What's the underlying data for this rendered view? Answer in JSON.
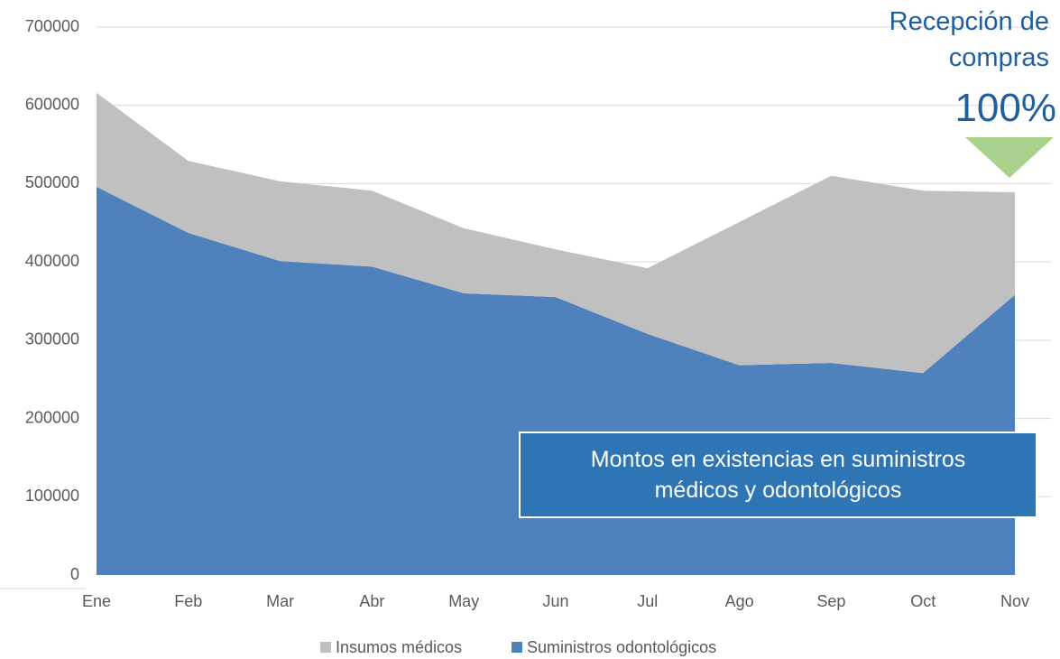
{
  "chart_data": {
    "type": "stacked_area",
    "categories": [
      "Ene",
      "Feb",
      "Mar",
      "Abr",
      "May",
      "Jun",
      "Jul",
      "Ago",
      "Sep",
      "Oct",
      "Nov"
    ],
    "series": [
      {
        "name": "Suministros odontológicos",
        "color": "#4f81bd",
        "values": [
          496000,
          437000,
          401000,
          394000,
          360000,
          355000,
          308000,
          268000,
          271000,
          258000,
          358000
        ]
      },
      {
        "name": "Insumos médicos",
        "color": "#c0c0c0",
        "values": [
          120000,
          92000,
          102000,
          97000,
          83000,
          61000,
          84000,
          183000,
          239000,
          233000,
          131000
        ]
      }
    ],
    "ylim": [
      0,
      700000
    ],
    "yticks": [
      0,
      100000,
      200000,
      300000,
      400000,
      500000,
      600000,
      700000
    ],
    "grid": true,
    "legend": "bottom",
    "annotations": {
      "heading": "Recepción de compras",
      "percent": "100%",
      "box": "Montos en existencias en suministros médicos y odontológicos"
    }
  }
}
